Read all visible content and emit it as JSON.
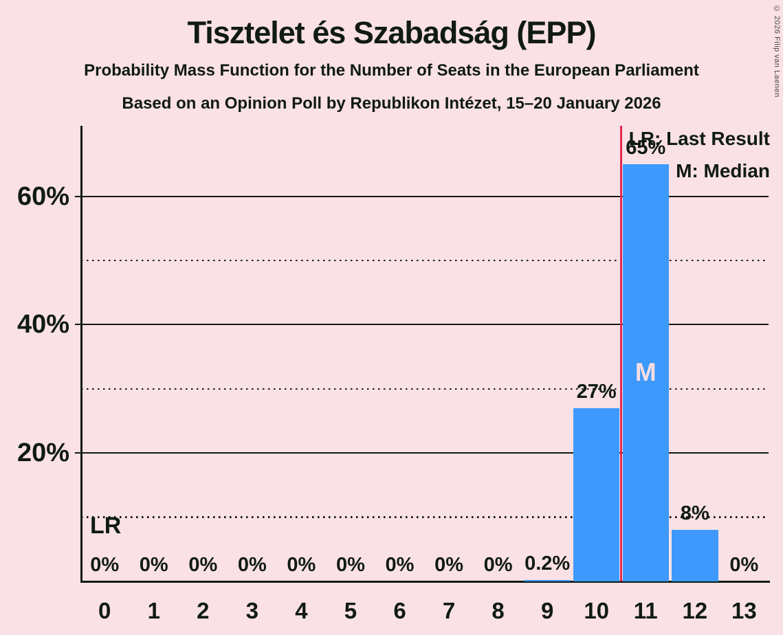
{
  "copyright": "© 2026 Filip van Laenen",
  "legend": [
    "LR: Last Result",
    "M: Median"
  ],
  "colors": {
    "background": "#FAE1E5",
    "bar": "#3D99FB",
    "last_result_line": "#E2294F",
    "text": "#101B12",
    "median_letter": "#F8DEE3"
  },
  "chart_data": {
    "type": "bar",
    "title": "Tisztelet és Szabadság (EPP)",
    "subtitle": "Probability Mass Function for the Number of Seats in the European Parliament",
    "subsubtitle": "Based on an Opinion Poll by Republikon Intézet, 15–20 January 2026",
    "xlabel": "",
    "ylabel": "",
    "categories": [
      "0",
      "1",
      "2",
      "3",
      "4",
      "5",
      "6",
      "7",
      "8",
      "9",
      "10",
      "11",
      "12",
      "13"
    ],
    "values": [
      0,
      0,
      0,
      0,
      0,
      0,
      0,
      0,
      0,
      0.2,
      27,
      65,
      8,
      0
    ],
    "bar_labels": [
      "0%",
      "0%",
      "0%",
      "0%",
      "0%",
      "0%",
      "0%",
      "0%",
      "0%",
      "0.2%",
      "27%",
      "65%",
      "8%",
      "0%"
    ],
    "ylim": [
      0,
      71
    ],
    "y_solid_ticks": [
      {
        "value": 20,
        "label": "20%"
      },
      {
        "value": 40,
        "label": "40%"
      },
      {
        "value": 60,
        "label": "60%"
      }
    ],
    "y_dotted_gridlines": [
      10,
      30,
      50
    ],
    "grid": "horizontal",
    "legend_position": "top-right",
    "annotations": {
      "last_result_label": "LR",
      "median_label": "M",
      "last_result_line_x": 10.5,
      "median_seat": 11
    }
  }
}
